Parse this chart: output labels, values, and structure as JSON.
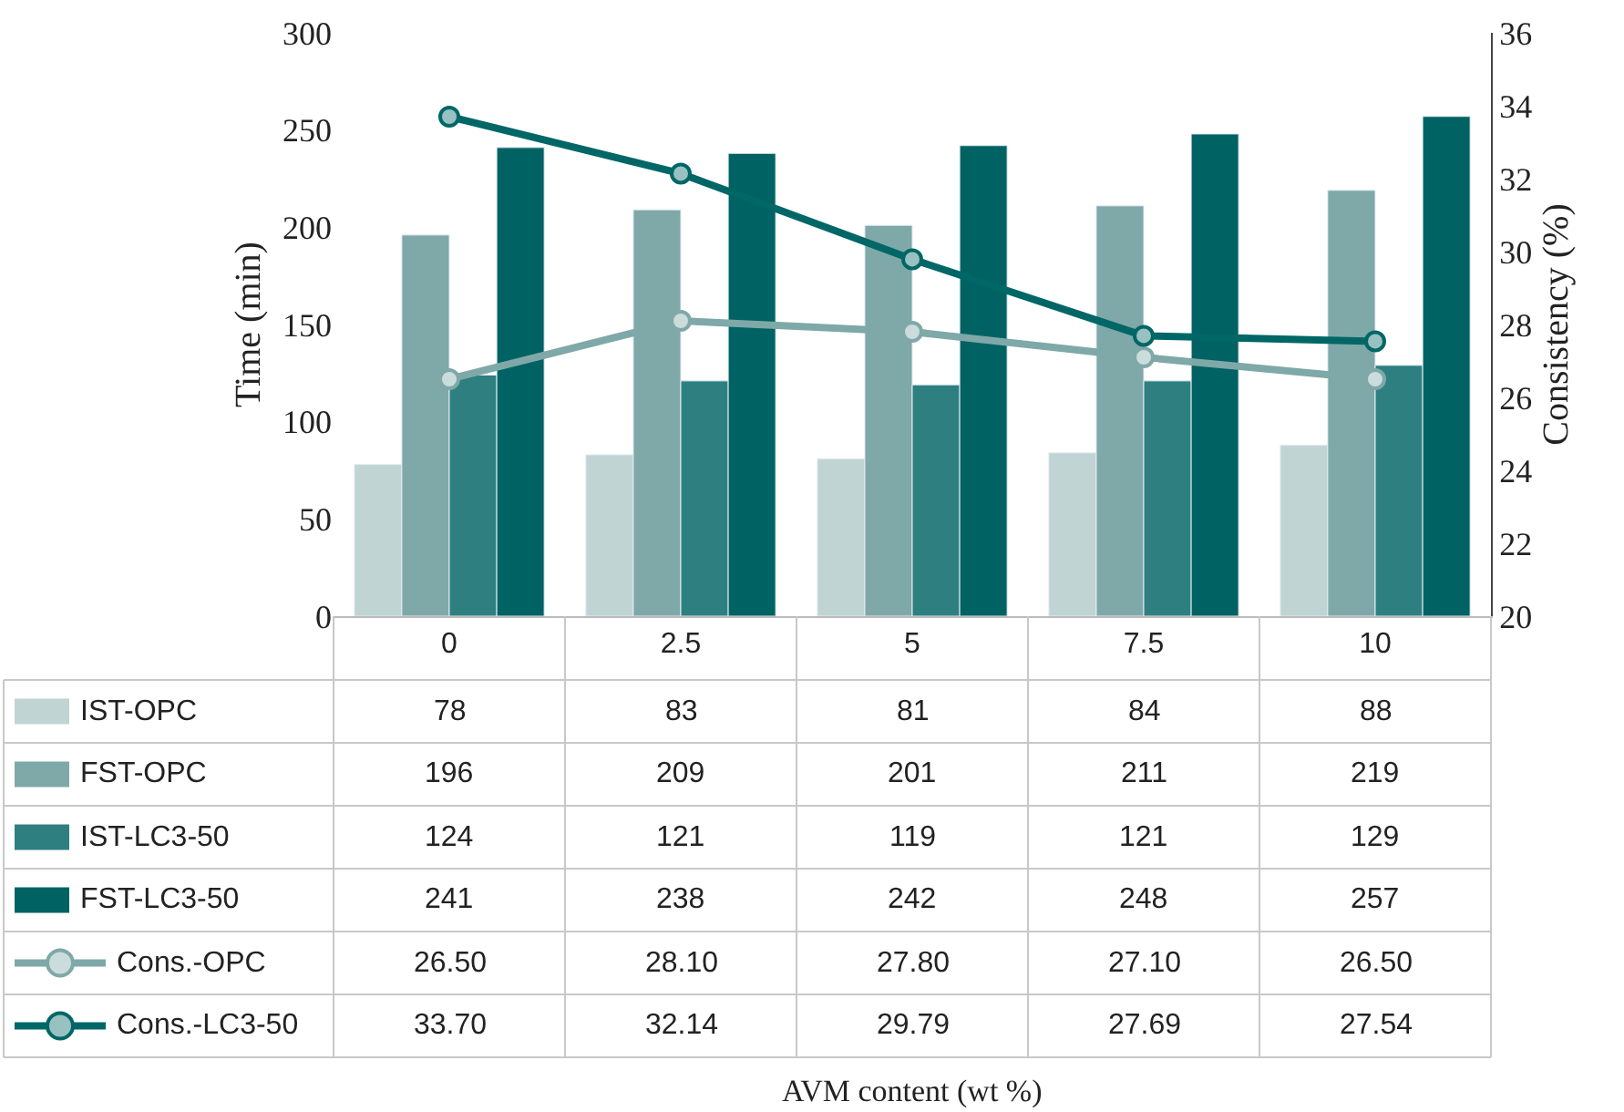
{
  "chart_data": {
    "type": "bar",
    "annotations": [
      "AVM content (wt %)"
    ],
    "ylabel": "Time (min)",
    "y2label": "Consistency (%)",
    "categories": [
      "0",
      "2.5",
      "5",
      "7.5",
      "10"
    ],
    "series": [
      {
        "name": "IST-OPC",
        "color": "#c0d4d4",
        "values": [
          78,
          83,
          81,
          84,
          88
        ]
      },
      {
        "name": "FST-OPC",
        "color": "#7fa8a8",
        "values": [
          196,
          209,
          201,
          211,
          219
        ]
      },
      {
        "name": "IST-LC3-50",
        "color": "#2e8080",
        "values": [
          124,
          121,
          119,
          121,
          129
        ]
      },
      {
        "name": "FST-LC3-50",
        "color": "#006262",
        "values": [
          241,
          238,
          242,
          248,
          257
        ]
      },
      {
        "name": "Cons.-OPC",
        "type": "line",
        "axis": "y2",
        "marker": "circle",
        "color": "#7fa8a8",
        "values": [
          26.5,
          28.1,
          27.8,
          27.1,
          26.5
        ],
        "value_labels": [
          "26.50",
          "28.10",
          "27.80",
          "27.10",
          "26.50"
        ]
      },
      {
        "name": "Cons.-LC3-50",
        "type": "line",
        "axis": "y2",
        "marker": "circle",
        "color": "#006666",
        "values": [
          33.7,
          32.14,
          29.79,
          27.69,
          27.54
        ],
        "value_labels": [
          "33.70",
          "32.14",
          "29.79",
          "27.69",
          "27.54"
        ]
      }
    ],
    "data_labels": true,
    "ylim": [
      0,
      300
    ],
    "yticks": [
      0,
      50,
      100,
      150,
      200,
      250,
      300
    ],
    "y2lim": [
      20,
      36
    ],
    "y2ticks": [
      20,
      22,
      24,
      26,
      28,
      30,
      32,
      34,
      36
    ],
    "legend": "bottom left"
  }
}
